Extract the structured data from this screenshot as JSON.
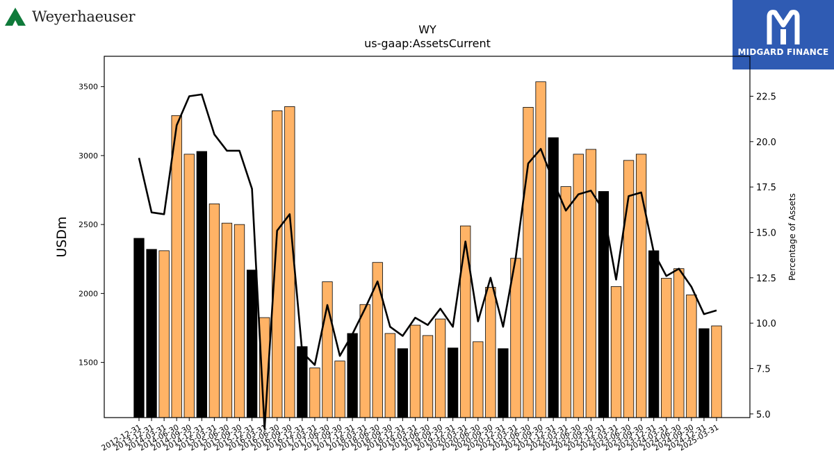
{
  "brand": {
    "name": "Weyerhaeuser",
    "logo_icon": "tree-logo-icon",
    "logo_color": "#0f7a3a"
  },
  "partner": {
    "name": "MIDGARD FINANCE",
    "logo_icon": "midgard-m-logo-icon",
    "bg_color": "#2f5bb3"
  },
  "chart_data": {
    "type": "bar",
    "title": "WY",
    "subtitle": "us-gaap:AssetsCurrent",
    "ylabel": "USDm",
    "y2label": "Percentage of Assets",
    "ylim": [
      1100,
      3720
    ],
    "y2lim": [
      4.8,
      24.7
    ],
    "yticks": [
      1500,
      2000,
      2500,
      3000,
      3500
    ],
    "y2ticks": [
      "5.0",
      "7.5",
      "10.0",
      "12.5",
      "15.0",
      "17.5",
      "20.0",
      "22.5"
    ],
    "colors": {
      "annual": "#000000",
      "quarterly": "#ffb366",
      "line": "#000000"
    },
    "categories": [
      "2012-12-31",
      "2013-12-31",
      "2014-03-31",
      "2014-06-30",
      "2014-09-30",
      "2014-12-31",
      "2015-03-31",
      "2015-06-30",
      "2015-09-30",
      "2015-12-31",
      "2016-03-31",
      "2016-06-30",
      "2016-09-30",
      "2016-12-31",
      "2017-03-31",
      "2017-06-30",
      "2017-09-30",
      "2017-12-31",
      "2018-03-31",
      "2018-06-30",
      "2018-09-30",
      "2018-12-31",
      "2019-03-31",
      "2019-06-30",
      "2019-09-30",
      "2019-12-31",
      "2020-03-31",
      "2020-06-30",
      "2020-09-30",
      "2020-12-31",
      "2021-03-31",
      "2021-06-30",
      "2021-09-30",
      "2021-12-31",
      "2022-03-31",
      "2022-06-30",
      "2022-09-30",
      "2022-12-31",
      "2023-03-31",
      "2023-06-30",
      "2023-09-30",
      "2023-12-31",
      "2024-03-31",
      "2024-06-30",
      "2024-09-30",
      "2024-12-31",
      "2025-03-31"
    ],
    "values": [
      2400,
      2320,
      2310,
      3290,
      3010,
      3030,
      2650,
      2510,
      2500,
      2170,
      1825,
      3325,
      3355,
      1615,
      1460,
      2085,
      1510,
      1710,
      1920,
      2225,
      1710,
      1600,
      1770,
      1695,
      1815,
      1605,
      2490,
      1650,
      2045,
      1600,
      2255,
      3350,
      3535,
      3130,
      2775,
      3010,
      3045,
      2740,
      2050,
      2965,
      3010,
      2310,
      2110,
      2180,
      1990,
      1745,
      1765
    ],
    "annual": [
      true,
      true,
      false,
      false,
      false,
      true,
      false,
      false,
      false,
      true,
      false,
      false,
      false,
      true,
      false,
      false,
      false,
      true,
      false,
      false,
      false,
      true,
      false,
      false,
      false,
      true,
      false,
      false,
      false,
      true,
      false,
      false,
      false,
      true,
      false,
      false,
      false,
      true,
      false,
      false,
      false,
      true,
      false,
      false,
      false,
      true,
      false
    ],
    "pct_assets": [
      19.1,
      16.1,
      16.0,
      20.9,
      22.5,
      22.6,
      20.4,
      19.5,
      19.5,
      17.4,
      4.2,
      15.1,
      16.0,
      8.4,
      7.7,
      11.0,
      8.2,
      9.4,
      10.8,
      12.3,
      9.8,
      9.3,
      10.3,
      9.9,
      10.8,
      9.8,
      14.5,
      10.1,
      12.5,
      9.8,
      13.6,
      18.8,
      19.6,
      17.8,
      16.2,
      17.1,
      17.3,
      16.2,
      12.4,
      17.0,
      17.2,
      13.9,
      12.6,
      13.0,
      12.0,
      10.5,
      10.7
    ]
  }
}
